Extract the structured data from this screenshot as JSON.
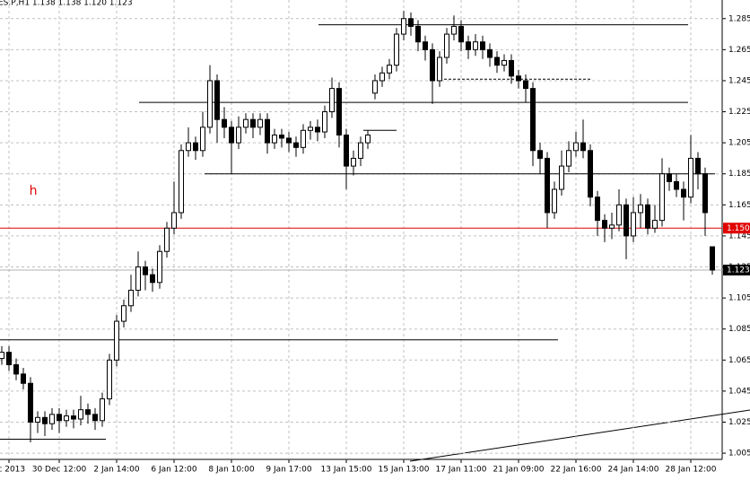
{
  "chart_data": {
    "type": "candlestick",
    "title": "ES.P,H1  1.138 1.138 1.120 1.123",
    "categories": [
      null,
      "ec 2013",
      null,
      null,
      null,
      null,
      null,
      null,
      "30 Dec 12:00",
      null,
      null,
      null,
      null,
      null,
      null,
      null,
      "2 Jan 14:00",
      null,
      null,
      null,
      null,
      null,
      null,
      null,
      "6 Jan 12:00",
      null,
      null,
      null,
      null,
      null,
      null,
      null,
      "8 Jan 10:00",
      null,
      null,
      null,
      null,
      null,
      null,
      null,
      "9 Jan 17:00",
      null,
      null,
      null,
      null,
      null,
      null,
      null,
      "13 Jan 15:00",
      null,
      null,
      null,
      null,
      null,
      null,
      null,
      "15 Jan 13:00",
      null,
      null,
      null,
      null,
      null,
      null,
      null,
      "17 Jan 11:00",
      null,
      null,
      null,
      null,
      null,
      null,
      null,
      "21 Jan 09:00",
      null,
      null,
      null,
      null,
      null,
      null,
      null,
      "22 Jan 16:00",
      null,
      null,
      null,
      null,
      null,
      null,
      null,
      "24 Jan 14:00",
      null,
      null,
      null,
      null,
      null,
      null,
      null,
      "28 Jan 12:00",
      null,
      null,
      null
    ],
    "open": [
      1.066,
      1.07,
      1.062,
      1.056,
      1.05,
      1.025,
      1.028,
      1.024,
      1.03,
      1.026,
      1.029,
      1.027,
      1.033,
      1.03,
      1.026,
      1.04,
      1.065,
      1.09,
      1.1,
      1.11,
      1.125,
      1.12,
      1.115,
      1.135,
      1.15,
      1.16,
      1.2,
      1.205,
      1.2,
      1.215,
      1.245,
      1.22,
      1.215,
      1.205,
      1.215,
      1.22,
      1.215,
      1.22,
      1.205,
      1.21,
      1.208,
      1.205,
      1.202,
      1.213,
      1.215,
      1.212,
      1.225,
      1.24,
      1.21,
      1.19,
      1.195,
      1.205,
      1.237,
      1.245,
      1.25,
      1.255,
      1.275,
      1.285,
      1.28,
      1.27,
      1.265,
      1.245,
      1.26,
      1.275,
      1.28,
      1.27,
      1.265,
      1.27,
      1.265,
      1.26,
      1.255,
      1.258,
      1.248,
      1.245,
      1.24,
      1.2,
      1.195,
      1.16,
      1.175,
      1.19,
      1.2,
      1.205,
      1.2,
      1.17,
      1.155,
      1.15,
      1.152,
      1.165,
      1.145,
      1.16,
      1.165,
      1.15,
      1.155,
      1.185,
      1.18,
      1.175,
      1.17,
      1.195,
      1.185,
      1.138
    ],
    "high": [
      1.074,
      1.074,
      1.066,
      1.06,
      1.054,
      1.032,
      1.032,
      1.034,
      1.034,
      1.033,
      1.033,
      1.042,
      1.037,
      1.034,
      1.044,
      1.069,
      1.094,
      1.104,
      1.12,
      1.135,
      1.129,
      1.124,
      1.139,
      1.154,
      1.18,
      1.204,
      1.215,
      1.209,
      1.225,
      1.255,
      1.249,
      1.228,
      1.219,
      1.222,
      1.224,
      1.224,
      1.224,
      1.224,
      1.214,
      1.214,
      1.212,
      1.209,
      1.217,
      1.219,
      1.22,
      1.229,
      1.247,
      1.244,
      1.214,
      1.2,
      1.209,
      1.213,
      1.249,
      1.254,
      1.259,
      1.279,
      1.29,
      1.289,
      1.284,
      1.274,
      1.269,
      1.264,
      1.279,
      1.287,
      1.284,
      1.274,
      1.275,
      1.274,
      1.269,
      1.264,
      1.262,
      1.262,
      1.252,
      1.249,
      1.244,
      1.205,
      1.199,
      1.18,
      1.2,
      1.206,
      1.212,
      1.22,
      1.204,
      1.174,
      1.159,
      1.16,
      1.175,
      1.169,
      1.17,
      1.172,
      1.169,
      1.165,
      1.195,
      1.189,
      1.185,
      1.18,
      1.21,
      1.199,
      1.189,
      1.138
    ],
    "low": [
      1.062,
      1.058,
      1.052,
      1.046,
      1.012,
      1.018,
      1.016,
      1.02,
      1.018,
      1.022,
      1.021,
      1.023,
      1.024,
      1.02,
      1.022,
      1.036,
      1.061,
      1.086,
      1.096,
      1.106,
      1.11,
      1.109,
      1.111,
      1.131,
      1.146,
      1.156,
      1.196,
      1.194,
      1.196,
      1.211,
      1.205,
      1.208,
      1.185,
      1.201,
      1.211,
      1.208,
      1.21,
      1.198,
      1.201,
      1.202,
      1.199,
      1.196,
      1.198,
      1.207,
      1.206,
      1.208,
      1.221,
      1.202,
      1.175,
      1.184,
      1.19,
      1.201,
      1.233,
      1.241,
      1.246,
      1.251,
      1.271,
      1.274,
      1.264,
      1.258,
      1.23,
      1.241,
      1.256,
      1.271,
      1.264,
      1.259,
      1.261,
      1.259,
      1.254,
      1.25,
      1.251,
      1.243,
      1.24,
      1.231,
      1.19,
      1.185,
      1.15,
      1.156,
      1.171,
      1.186,
      1.196,
      1.195,
      1.164,
      1.145,
      1.141,
      1.143,
      1.148,
      1.13,
      1.141,
      1.15,
      1.146,
      1.147,
      1.151,
      1.174,
      1.17,
      1.155,
      1.166,
      1.175,
      1.145,
      1.12
    ],
    "close": [
      1.07,
      1.062,
      1.056,
      1.05,
      1.025,
      1.028,
      1.024,
      1.03,
      1.026,
      1.029,
      1.027,
      1.033,
      1.03,
      1.026,
      1.04,
      1.065,
      1.09,
      1.1,
      1.11,
      1.125,
      1.12,
      1.115,
      1.135,
      1.15,
      1.16,
      1.2,
      1.205,
      1.2,
      1.215,
      1.245,
      1.22,
      1.215,
      1.205,
      1.215,
      1.22,
      1.215,
      1.22,
      1.205,
      1.21,
      1.208,
      1.205,
      1.202,
      1.213,
      1.215,
      1.212,
      1.225,
      1.24,
      1.21,
      1.19,
      1.195,
      1.205,
      1.21,
      1.245,
      1.25,
      1.255,
      1.275,
      1.285,
      1.28,
      1.27,
      1.265,
      1.245,
      1.26,
      1.275,
      1.28,
      1.27,
      1.265,
      1.27,
      1.265,
      1.26,
      1.255,
      1.258,
      1.248,
      1.245,
      1.24,
      1.2,
      1.195,
      1.16,
      1.175,
      1.19,
      1.2,
      1.205,
      1.2,
      1.17,
      1.155,
      1.15,
      1.152,
      1.165,
      1.145,
      1.16,
      1.165,
      1.15,
      1.155,
      1.185,
      1.18,
      1.175,
      1.17,
      1.195,
      1.185,
      1.16,
      1.123
    ],
    "ylim": [
      1.001,
      1.297
    ],
    "yticks": [
      1.005,
      1.025,
      1.045,
      1.065,
      1.085,
      1.105,
      1.125,
      1.145,
      1.165,
      1.185,
      1.205,
      1.225,
      1.245,
      1.265,
      1.285
    ],
    "grid": true,
    "levels": [
      1.281,
      1.246,
      1.231,
      1.213,
      1.185,
      1.078,
      1.014
    ],
    "price_labels": [
      {
        "value": 1.15,
        "label": "1.150",
        "color": "#e00000"
      },
      {
        "value": 1.123,
        "label": "1.123",
        "color": "#000000"
      }
    ],
    "annotation": "h"
  }
}
